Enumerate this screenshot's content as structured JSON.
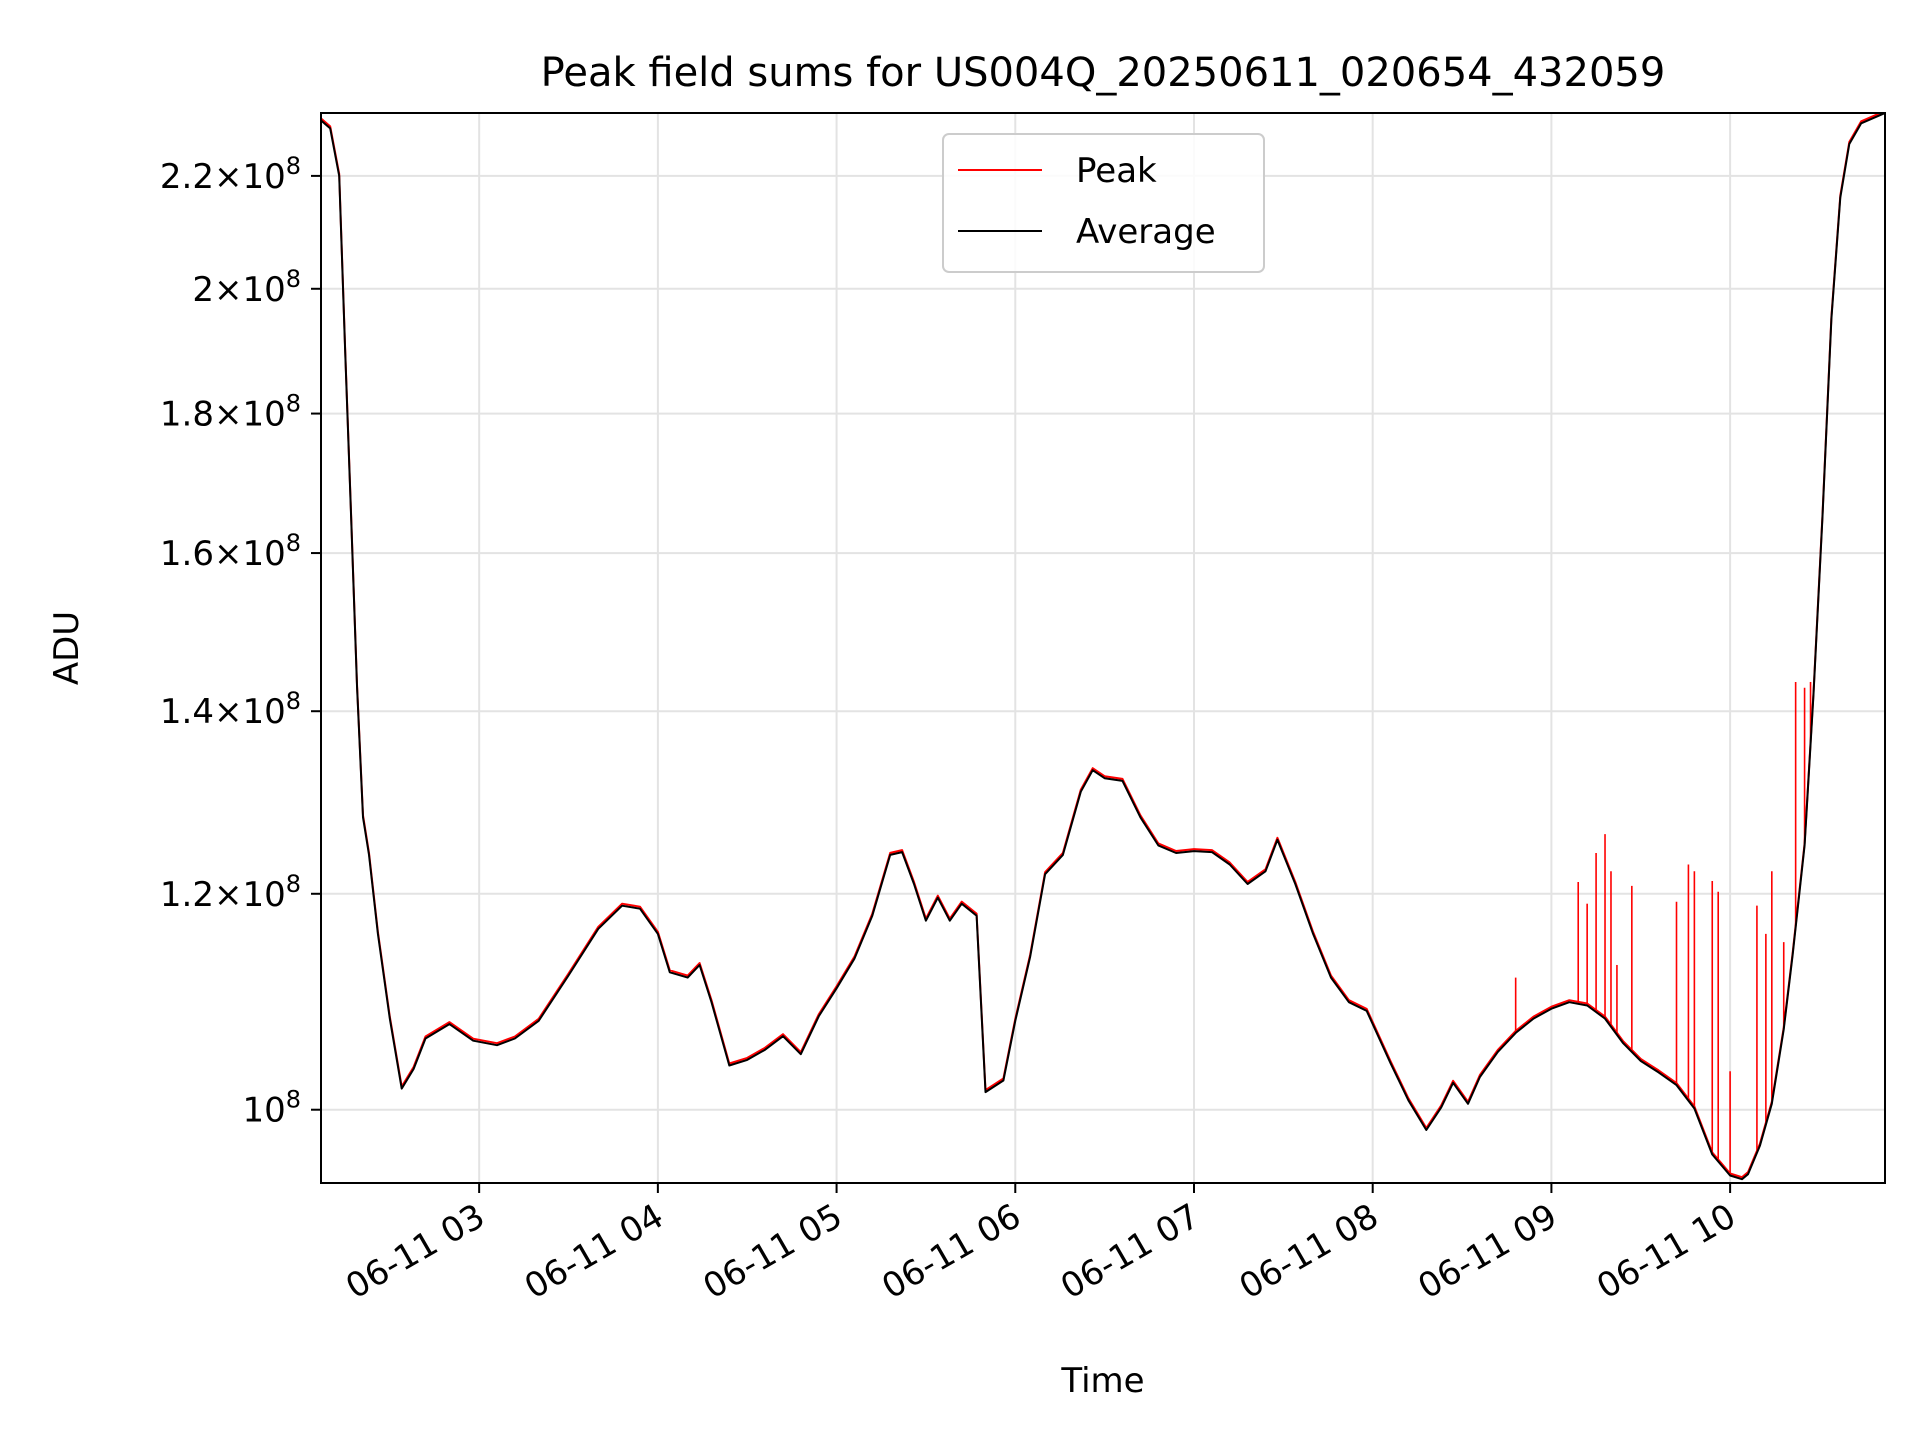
{
  "chart_data": {
    "type": "line",
    "title": "Peak field sums for US004Q_20250611_020654_432059",
    "xlabel": "Time",
    "ylabel": "ADU",
    "yscale": "log",
    "grid": true,
    "legend_placement": "upper center",
    "xlim": [
      "2025-06-11T02:06:54",
      "2025-06-11T10:52:00"
    ],
    "ylim": [
      94000000,
      232000000
    ],
    "x_ticks": [
      {
        "value": "2025-06-11T03:00",
        "label": "06-11 03"
      },
      {
        "value": "2025-06-11T04:00",
        "label": "06-11 04"
      },
      {
        "value": "2025-06-11T05:00",
        "label": "06-11 05"
      },
      {
        "value": "2025-06-11T06:00",
        "label": "06-11 06"
      },
      {
        "value": "2025-06-11T07:00",
        "label": "06-11 07"
      },
      {
        "value": "2025-06-11T08:00",
        "label": "06-11 08"
      },
      {
        "value": "2025-06-11T09:00",
        "label": "06-11 09"
      },
      {
        "value": "2025-06-11T10:00",
        "label": "06-11 10"
      }
    ],
    "y_ticks": [
      {
        "value": 100000000,
        "mantissa": "",
        "exponent": "8"
      },
      {
        "value": 120000000,
        "mantissa": "1.2",
        "exponent": "8"
      },
      {
        "value": 140000000,
        "mantissa": "1.4",
        "exponent": "8"
      },
      {
        "value": 160000000,
        "mantissa": "1.6",
        "exponent": "8"
      },
      {
        "value": 180000000,
        "mantissa": "1.8",
        "exponent": "8"
      },
      {
        "value": 200000000,
        "mantissa": "2",
        "exponent": "8"
      },
      {
        "value": 220000000,
        "mantissa": "2.2",
        "exponent": "8"
      }
    ],
    "series": [
      {
        "name": "Average",
        "color": "#000000",
        "x": [
          "2025-06-11T02:06",
          "2025-06-11T02:10",
          "2025-06-11T02:13",
          "2025-06-11T02:15",
          "2025-06-11T02:17",
          "2025-06-11T02:19",
          "2025-06-11T02:21",
          "2025-06-11T02:23",
          "2025-06-11T02:26",
          "2025-06-11T02:30",
          "2025-06-11T02:34",
          "2025-06-11T02:38",
          "2025-06-11T02:42",
          "2025-06-11T02:50",
          "2025-06-11T02:58",
          "2025-06-11T03:06",
          "2025-06-11T03:12",
          "2025-06-11T03:20",
          "2025-06-11T03:30",
          "2025-06-11T03:40",
          "2025-06-11T03:48",
          "2025-06-11T03:54",
          "2025-06-11T04:00",
          "2025-06-11T04:04",
          "2025-06-11T04:10",
          "2025-06-11T04:14",
          "2025-06-11T04:18",
          "2025-06-11T04:24",
          "2025-06-11T04:30",
          "2025-06-11T04:36",
          "2025-06-11T04:42",
          "2025-06-11T04:48",
          "2025-06-11T04:54",
          "2025-06-11T05:00",
          "2025-06-11T05:06",
          "2025-06-11T05:12",
          "2025-06-11T05:18",
          "2025-06-11T05:22",
          "2025-06-11T05:26",
          "2025-06-11T05:30",
          "2025-06-11T05:34",
          "2025-06-11T05:38",
          "2025-06-11T05:42",
          "2025-06-11T05:47",
          "2025-06-11T05:50",
          "2025-06-11T05:56",
          "2025-06-11T06:00",
          "2025-06-11T06:05",
          "2025-06-11T06:10",
          "2025-06-11T06:16",
          "2025-06-11T06:22",
          "2025-06-11T06:26",
          "2025-06-11T06:30",
          "2025-06-11T06:36",
          "2025-06-11T06:42",
          "2025-06-11T06:48",
          "2025-06-11T06:54",
          "2025-06-11T07:00",
          "2025-06-11T07:06",
          "2025-06-11T07:12",
          "2025-06-11T07:18",
          "2025-06-11T07:24",
          "2025-06-11T07:28",
          "2025-06-11T07:34",
          "2025-06-11T07:40",
          "2025-06-11T07:46",
          "2025-06-11T07:52",
          "2025-06-11T07:58",
          "2025-06-11T08:06",
          "2025-06-11T08:12",
          "2025-06-11T08:18",
          "2025-06-11T08:23",
          "2025-06-11T08:27",
          "2025-06-11T08:32",
          "2025-06-11T08:36",
          "2025-06-11T08:42",
          "2025-06-11T08:48",
          "2025-06-11T08:54",
          "2025-06-11T09:00",
          "2025-06-11T09:06",
          "2025-06-11T09:12",
          "2025-06-11T09:18",
          "2025-06-11T09:24",
          "2025-06-11T09:30",
          "2025-06-11T09:36",
          "2025-06-11T09:42",
          "2025-06-11T09:48",
          "2025-06-11T09:54",
          "2025-06-11T10:00",
          "2025-06-11T10:04",
          "2025-06-11T10:06",
          "2025-06-11T10:10",
          "2025-06-11T10:14",
          "2025-06-11T10:18",
          "2025-06-11T10:21",
          "2025-06-11T10:25",
          "2025-06-11T10:28",
          "2025-06-11T10:31",
          "2025-06-11T10:34",
          "2025-06-11T10:37",
          "2025-06-11T10:40",
          "2025-06-11T10:44",
          "2025-06-11T10:52"
        ],
        "y": [
          231000000,
          229000000,
          220000000,
          190000000,
          165000000,
          143000000,
          128000000,
          124000000,
          116000000,
          108000000,
          101800000,
          103500000,
          106200000,
          107500000,
          106000000,
          105600000,
          106200000,
          107800000,
          112000000,
          116500000,
          118800000,
          118500000,
          116000000,
          112300000,
          111800000,
          113000000,
          109500000,
          103800000,
          104300000,
          105200000,
          106400000,
          104800000,
          108200000,
          110800000,
          113600000,
          117800000,
          124000000,
          124300000,
          121000000,
          117300000,
          119600000,
          117300000,
          119000000,
          117800000,
          101500000,
          102500000,
          107800000,
          113800000,
          122000000,
          124000000,
          130800000,
          133200000,
          132300000,
          132000000,
          128000000,
          125000000,
          124200000,
          124400000,
          124300000,
          123000000,
          121000000,
          122300000,
          125600000,
          121000000,
          116000000,
          111800000,
          109500000,
          108700000,
          104000000,
          100800000,
          98300000,
          100200000,
          102300000,
          100500000,
          102800000,
          105000000,
          106700000,
          108000000,
          108900000,
          109500000,
          109200000,
          108000000,
          105800000,
          104200000,
          103200000,
          102100000,
          100100000,
          96300000,
          94600000,
          94300000,
          94700000,
          97000000,
          100500000,
          107000000,
          114000000,
          125000000,
          142000000,
          165000000,
          195000000,
          216000000,
          226000000,
          230000000,
          232000000
        ]
      },
      {
        "name": "Peak",
        "color": "#ff0000",
        "spikes": [
          {
            "x": "2025-06-11T08:48",
            "y": 111800000
          },
          {
            "x": "2025-06-11T09:09",
            "y": 121200000
          },
          {
            "x": "2025-06-11T09:12",
            "y": 119000000
          },
          {
            "x": "2025-06-11T09:15",
            "y": 124200000
          },
          {
            "x": "2025-06-11T09:18",
            "y": 126200000
          },
          {
            "x": "2025-06-11T09:20",
            "y": 122300000
          },
          {
            "x": "2025-06-11T09:22",
            "y": 113000000
          },
          {
            "x": "2025-06-11T09:27",
            "y": 120800000
          },
          {
            "x": "2025-06-11T09:42",
            "y": 119200000
          },
          {
            "x": "2025-06-11T09:46",
            "y": 123000000
          },
          {
            "x": "2025-06-11T09:48",
            "y": 122300000
          },
          {
            "x": "2025-06-11T09:54",
            "y": 121300000
          },
          {
            "x": "2025-06-11T09:56",
            "y": 120200000
          },
          {
            "x": "2025-06-11T10:00",
            "y": 103300000
          },
          {
            "x": "2025-06-11T10:09",
            "y": 118800000
          },
          {
            "x": "2025-06-11T10:12",
            "y": 116000000
          },
          {
            "x": "2025-06-11T10:14",
            "y": 122300000
          },
          {
            "x": "2025-06-11T10:18",
            "y": 115200000
          },
          {
            "x": "2025-06-11T10:22",
            "y": 143500000
          },
          {
            "x": "2025-06-11T10:25",
            "y": 142800000
          },
          {
            "x": "2025-06-11T10:27",
            "y": 143500000
          }
        ]
      }
    ]
  }
}
